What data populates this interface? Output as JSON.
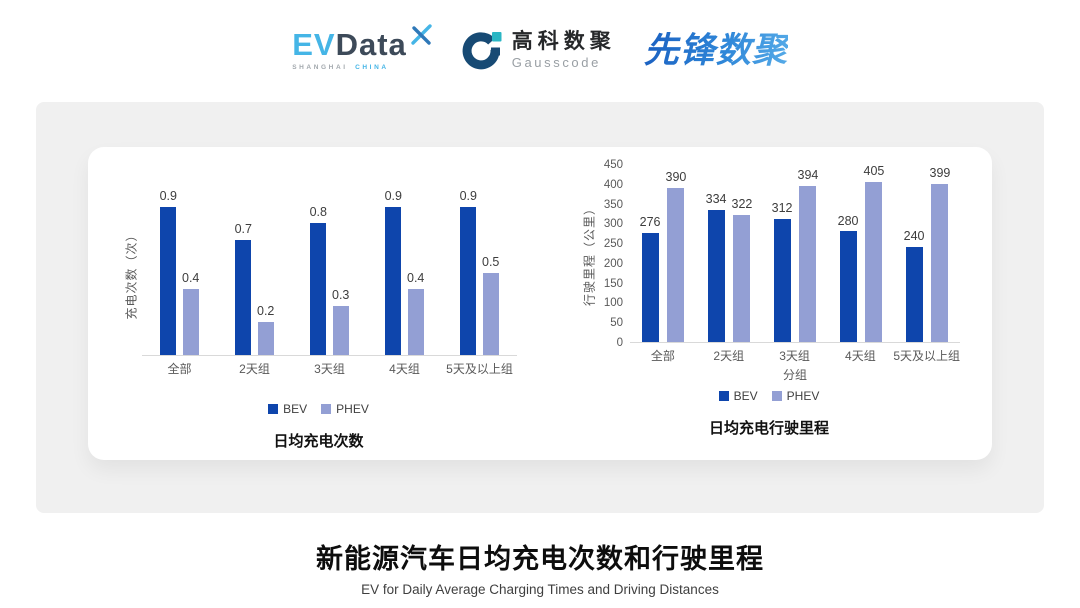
{
  "header": {
    "logos": {
      "evdata": {
        "ev": "EV",
        "data": "Data",
        "sub_left": "SHANGHAI",
        "sub_right": "CHINA"
      },
      "gausscode": {
        "cn": "高科数聚",
        "en": "Gausscode"
      },
      "xianfeng": {
        "text": "先锋数聚"
      }
    }
  },
  "colors": {
    "bev": "#0e45ac",
    "phev": "#939fd4",
    "axis_line": "#d9d9d9",
    "xianfeng_blue": "#2878d0",
    "evdata_cyan": "#45b5e6",
    "evdata_dark": "#3d4a59",
    "gausscode_navy": "#174a74",
    "gausscode_teal": "#2ab6c4"
  },
  "chart_data": [
    {
      "type": "bar",
      "title": "日均充电次数",
      "ylabel": "充电次数（次）",
      "xlabel": "",
      "categories": [
        "全部",
        "2天组",
        "3天组",
        "4天组",
        "5天及以上组"
      ],
      "series": [
        {
          "name": "BEV",
          "color": "#0e45ac",
          "values": [
            0.9,
            0.7,
            0.8,
            0.9,
            0.9
          ]
        },
        {
          "name": "PHEV",
          "color": "#939fd4",
          "values": [
            0.4,
            0.2,
            0.3,
            0.4,
            0.5
          ]
        }
      ],
      "ylim": [
        0,
        1.0
      ],
      "yticks": null,
      "grid": false,
      "legend_position": "bottom",
      "label_decimals": 1
    },
    {
      "type": "bar",
      "title": "日均充电行驶里程",
      "ylabel": "行驶里程（公里）",
      "xlabel": "分组",
      "categories": [
        "全部",
        "2天组",
        "3天组",
        "4天组",
        "5天及以上组"
      ],
      "series": [
        {
          "name": "BEV",
          "color": "#0e45ac",
          "values": [
            276,
            334,
            312,
            280,
            240
          ]
        },
        {
          "name": "PHEV",
          "color": "#939fd4",
          "values": [
            390,
            322,
            394,
            405,
            399
          ]
        }
      ],
      "ylim": [
        0,
        450
      ],
      "yticks": [
        0,
        50,
        100,
        150,
        200,
        250,
        300,
        350,
        400,
        450
      ],
      "grid": false,
      "legend_position": "bottom",
      "label_decimals": 0
    }
  ],
  "footer": {
    "title": "新能源汽车日均充电次数和行驶里程",
    "subtitle": "EV for Daily Average Charging Times and Driving Distances"
  }
}
